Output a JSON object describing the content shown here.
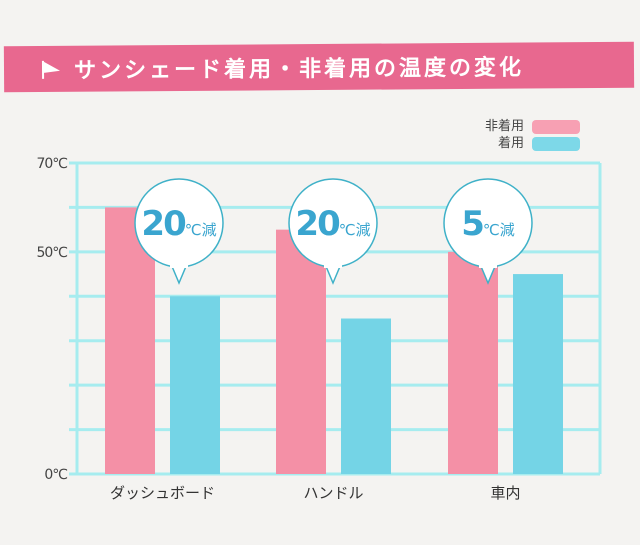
{
  "chart_data": {
    "type": "bar",
    "title": "サンシェード着用・非着用の温度の変化",
    "categories": [
      "ダッシュボード",
      "ハンドル",
      "車内"
    ],
    "series": [
      {
        "name": "非着用",
        "values": [
          60,
          55,
          50
        ],
        "color": "#f490a6"
      },
      {
        "name": "着用",
        "values": [
          40,
          35,
          45
        ],
        "color": "#74d4e6"
      }
    ],
    "annotations": [
      {
        "number": "20",
        "unit": "℃減"
      },
      {
        "number": "20",
        "unit": "℃減"
      },
      {
        "number": "5",
        "unit": "℃減"
      }
    ],
    "ylim": [
      0,
      70
    ],
    "yticks": [
      {
        "value": 0,
        "label": "0℃"
      },
      {
        "value": 50,
        "label": "50℃"
      },
      {
        "value": 70,
        "label": "70℃"
      }
    ],
    "grid_step": 10,
    "legend": "top-right",
    "grid_color": "#a6ecef",
    "annotation_color": "#3aa5cf"
  }
}
